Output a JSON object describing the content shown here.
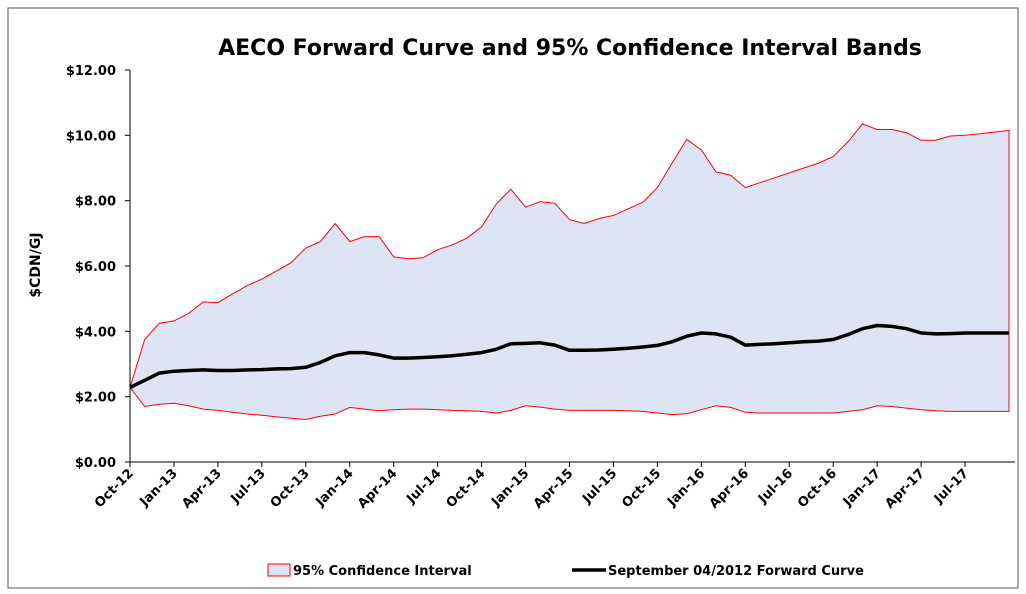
{
  "chart_data": {
    "type": "band-line",
    "title": "AECO Forward Curve and 95% Confidence Interval Bands",
    "y_label": "$CDN/GJ",
    "categories": [
      "Oct-12",
      null,
      null,
      "Jan-13",
      null,
      null,
      "Apr-13",
      null,
      null,
      "Jul-13",
      null,
      null,
      "Oct-13",
      null,
      null,
      "Jan-14",
      null,
      null,
      "Apr-14",
      null,
      null,
      "Jul-14",
      null,
      null,
      "Oct-14",
      null,
      null,
      "Jan-15",
      null,
      null,
      "Apr-15",
      null,
      null,
      "Jul-15",
      null,
      null,
      "Oct-15",
      null,
      null,
      "Jan-16",
      null,
      null,
      "Apr-16",
      null,
      null,
      "Jul-16",
      null,
      null,
      "Oct-16",
      null,
      null,
      "Jan-17",
      null,
      null,
      "Apr-17",
      null,
      null,
      "Jul-17",
      null,
      null,
      null
    ],
    "band": {
      "name": "95% Confidence Interval",
      "color": "#dde4f3",
      "edge_color": "#ff0000",
      "upper": [
        2.28,
        3.75,
        4.25,
        4.32,
        4.55,
        4.9,
        4.88,
        5.15,
        5.4,
        5.6,
        5.85,
        6.1,
        6.55,
        6.75,
        7.3,
        6.75,
        6.9,
        6.9,
        6.28,
        6.22,
        6.25,
        6.5,
        6.65,
        6.85,
        7.2,
        7.9,
        8.35,
        7.8,
        7.97,
        7.92,
        7.42,
        7.3,
        7.45,
        7.55,
        7.75,
        7.95,
        8.4,
        9.15,
        9.88,
        9.55,
        8.88,
        8.78,
        8.4,
        8.55,
        8.7,
        8.85,
        9.0,
        9.15,
        9.35,
        9.8,
        10.35,
        10.18,
        10.18,
        10.08,
        9.85,
        9.85,
        9.98,
        10.0,
        10.05,
        10.1,
        10.15
      ],
      "lower": [
        2.28,
        1.7,
        1.77,
        1.8,
        1.72,
        1.62,
        1.58,
        1.52,
        1.47,
        1.43,
        1.38,
        1.34,
        1.3,
        1.4,
        1.47,
        1.67,
        1.62,
        1.57,
        1.6,
        1.62,
        1.62,
        1.6,
        1.58,
        1.57,
        1.55,
        1.5,
        1.58,
        1.72,
        1.68,
        1.62,
        1.58,
        1.58,
        1.58,
        1.58,
        1.57,
        1.55,
        1.5,
        1.45,
        1.48,
        1.6,
        1.72,
        1.67,
        1.52,
        1.5,
        1.5,
        1.5,
        1.5,
        1.5,
        1.5,
        1.55,
        1.6,
        1.72,
        1.7,
        1.65,
        1.6,
        1.57,
        1.55,
        1.55,
        1.55,
        1.55,
        1.55
      ]
    },
    "series": [
      {
        "name": "September 04/2012 Forward Curve",
        "color": "#000000",
        "values": [
          2.28,
          2.5,
          2.72,
          2.78,
          2.8,
          2.82,
          2.8,
          2.8,
          2.82,
          2.83,
          2.85,
          2.86,
          2.9,
          3.05,
          3.25,
          3.35,
          3.35,
          3.28,
          3.18,
          3.18,
          3.2,
          3.22,
          3.25,
          3.3,
          3.35,
          3.45,
          3.62,
          3.63,
          3.65,
          3.58,
          3.42,
          3.42,
          3.43,
          3.45,
          3.48,
          3.52,
          3.57,
          3.68,
          3.85,
          3.95,
          3.92,
          3.82,
          3.58,
          3.6,
          3.62,
          3.65,
          3.68,
          3.7,
          3.75,
          3.9,
          4.08,
          4.18,
          4.15,
          4.08,
          3.95,
          3.92,
          3.93,
          3.95,
          3.95,
          3.95,
          3.95
        ]
      }
    ],
    "ylim": [
      0,
      12
    ],
    "yticks": [
      {
        "value": 0,
        "label": "$0.00"
      },
      {
        "value": 2,
        "label": "$2.00"
      },
      {
        "value": 4,
        "label": "$4.00"
      },
      {
        "value": 6,
        "label": "$6.00"
      },
      {
        "value": 8,
        "label": "$8.00"
      },
      {
        "value": 10,
        "label": "$10.00"
      },
      {
        "value": 12,
        "label": "$12.00"
      }
    ],
    "grid": false
  }
}
